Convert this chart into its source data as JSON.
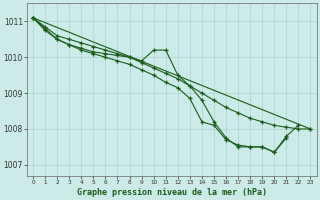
{
  "background_color": "#cceae7",
  "grid_color": "#aad4d0",
  "line_color": "#1a5c1a",
  "xlabel": "Graphe pression niveau de la mer (hPa)",
  "xlim": [
    -0.5,
    23.5
  ],
  "ylim": [
    1006.7,
    1011.5
  ],
  "yticks": [
    1007,
    1008,
    1009,
    1010,
    1011
  ],
  "xticks": [
    0,
    1,
    2,
    3,
    4,
    5,
    6,
    7,
    8,
    9,
    10,
    11,
    12,
    13,
    14,
    15,
    16,
    17,
    18,
    19,
    20,
    21,
    22,
    23
  ],
  "series": [
    {
      "x": [
        0,
        1,
        2,
        3,
        4,
        5,
        6,
        7,
        8,
        9,
        10,
        11,
        12,
        13,
        14,
        15,
        16,
        17,
        18,
        19,
        20,
        21,
        22,
        23
      ],
      "y": [
        1011.1,
        1010.85,
        1010.6,
        1010.5,
        1010.4,
        1010.3,
        1010.2,
        1010.1,
        1010.0,
        1009.85,
        1009.7,
        1009.55,
        1009.4,
        1009.2,
        1009.0,
        1008.8,
        1008.6,
        1008.45,
        1008.3,
        1008.2,
        1008.1,
        1008.05,
        1008.0,
        1008.0
      ]
    },
    {
      "x": [
        0,
        1,
        2,
        3,
        4,
        5,
        6,
        7,
        8,
        9,
        10,
        11,
        12,
        13,
        14,
        15,
        16,
        17,
        18,
        19,
        20,
        21,
        22
      ],
      "y": [
        1011.1,
        1010.8,
        1010.5,
        1010.35,
        1010.25,
        1010.15,
        1010.1,
        1010.05,
        1010.0,
        1009.9,
        1010.2,
        1010.2,
        1009.5,
        1009.2,
        1008.8,
        1008.2,
        1007.75,
        1007.5,
        1007.5,
        1007.5,
        1007.35,
        1007.8,
        1008.1
      ]
    },
    {
      "x": [
        0,
        1,
        2,
        3,
        4,
        5,
        6,
        7,
        8,
        9,
        10,
        11,
        12,
        13,
        14,
        15,
        16,
        17,
        18,
        19,
        20,
        21
      ],
      "y": [
        1011.1,
        1010.75,
        1010.5,
        1010.35,
        1010.2,
        1010.1,
        1010.0,
        1009.9,
        1009.8,
        1009.65,
        1009.5,
        1009.3,
        1009.15,
        1008.85,
        1008.2,
        1008.1,
        1007.7,
        1007.55,
        1007.5,
        1007.5,
        1007.35,
        1007.75
      ]
    },
    {
      "x": [
        0,
        23
      ],
      "y": [
        1011.1,
        1008.0
      ]
    }
  ]
}
